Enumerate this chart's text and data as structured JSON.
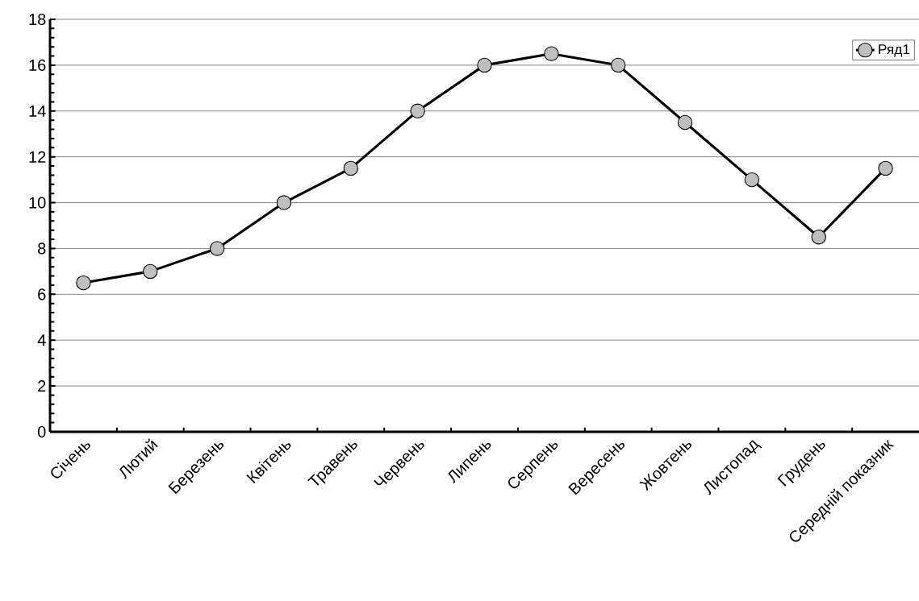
{
  "chart_data": {
    "type": "line",
    "categories": [
      "Січень",
      "Лютий",
      "Березень",
      "Квітень",
      "Травень",
      "Червень",
      "Липень",
      "Серпень",
      "Вересень",
      "Жовтень",
      "Листопад",
      "Грудень",
      "Середній показник"
    ],
    "series": [
      {
        "name": "Ряд1",
        "color": "#000000",
        "values": [
          6.5,
          7,
          8,
          10,
          11.5,
          14,
          16,
          16.5,
          16,
          13.5,
          11,
          8.5,
          11.5
        ]
      }
    ],
    "ylim": [
      0,
      18
    ],
    "yticks": [
      0,
      2,
      4,
      6,
      8,
      10,
      12,
      14,
      16,
      18
    ],
    "grid": "y",
    "legend": "top right",
    "marker": "circle",
    "line_style": "solid"
  }
}
